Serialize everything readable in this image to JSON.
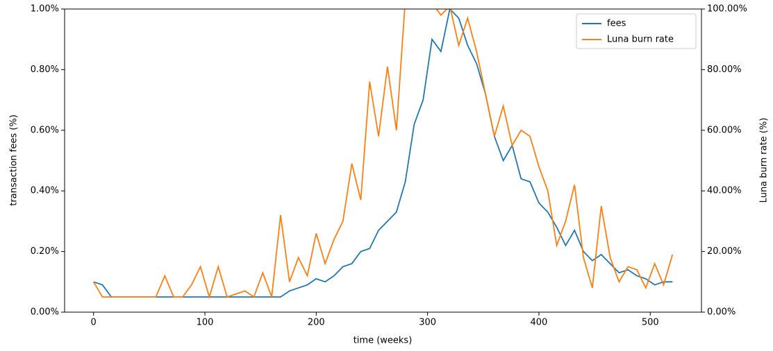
{
  "chart_data": {
    "type": "line",
    "xlabel": "time (weeks)",
    "ylabel": "transaction fees (%)",
    "y2label": "Luna burn rate (%)",
    "x": [
      0,
      8,
      16,
      24,
      32,
      40,
      48,
      56,
      64,
      72,
      80,
      88,
      96,
      104,
      112,
      120,
      128,
      136,
      144,
      152,
      160,
      168,
      176,
      184,
      192,
      200,
      208,
      216,
      224,
      232,
      240,
      248,
      256,
      264,
      272,
      280,
      288,
      296,
      304,
      312,
      320,
      328,
      336,
      344,
      352,
      360,
      368,
      376,
      384,
      392,
      400,
      408,
      416,
      424,
      432,
      440,
      448,
      456,
      464,
      472,
      480,
      488,
      496,
      504,
      512,
      520
    ],
    "series": [
      {
        "name": "fees",
        "color": "#1f77b4",
        "values": [
          0.1,
          0.09,
          0.05,
          0.05,
          0.05,
          0.05,
          0.05,
          0.05,
          0.05,
          0.05,
          0.05,
          0.05,
          0.05,
          0.05,
          0.05,
          0.05,
          0.05,
          0.05,
          0.05,
          0.05,
          0.05,
          0.05,
          0.07,
          0.08,
          0.09,
          0.11,
          0.1,
          0.12,
          0.15,
          0.16,
          0.2,
          0.21,
          0.27,
          0.3,
          0.33,
          0.43,
          0.62,
          0.7,
          0.9,
          0.86,
          1.0,
          0.97,
          0.88,
          0.82,
          0.72,
          0.58,
          0.5,
          0.55,
          0.44,
          0.43,
          0.36,
          0.33,
          0.28,
          0.22,
          0.27,
          0.2,
          0.17,
          0.19,
          0.16,
          0.13,
          0.14,
          0.12,
          0.11,
          0.09,
          0.1,
          0.1
        ]
      },
      {
        "name": "Luna burn rate",
        "color": "#ff7f0e",
        "axis": "y2",
        "values": [
          10,
          5,
          5,
          5,
          5,
          5,
          5,
          5,
          12,
          5,
          5,
          9,
          15,
          5,
          15,
          5,
          6,
          7,
          5,
          13,
          5,
          32,
          10,
          18,
          12,
          26,
          16,
          24,
          30,
          49,
          37,
          76,
          58,
          81,
          60,
          103,
          104,
          104,
          102,
          98,
          101,
          88,
          97,
          86,
          72,
          58,
          68,
          55,
          60,
          58,
          48,
          40,
          22,
          30,
          42,
          18,
          8,
          35,
          18,
          10,
          15,
          14,
          8,
          16,
          9,
          19
        ]
      }
    ],
    "xlim": [
      -26,
      546
    ],
    "xticks": [
      0,
      100,
      200,
      300,
      400,
      500
    ],
    "ylim": [
      0,
      1
    ],
    "yticks": [
      {
        "value": 0,
        "label": "0.00%"
      },
      {
        "value": 0.2,
        "label": "0.20%"
      },
      {
        "value": 0.4,
        "label": "0.40%"
      },
      {
        "value": 0.6,
        "label": "0.60%"
      },
      {
        "value": 0.8,
        "label": "0.80%"
      },
      {
        "value": 1,
        "label": "1.00%"
      }
    ],
    "y2lim": [
      0,
      100
    ],
    "y2ticks": [
      {
        "value": 0,
        "label": "0.00%"
      },
      {
        "value": 20,
        "label": "20.00%"
      },
      {
        "value": 40,
        "label": "40.00%"
      },
      {
        "value": 60,
        "label": "60.00%"
      },
      {
        "value": 80,
        "label": "80.00%"
      },
      {
        "value": 100,
        "label": "100.00%"
      }
    ],
    "legend": "upper right"
  }
}
